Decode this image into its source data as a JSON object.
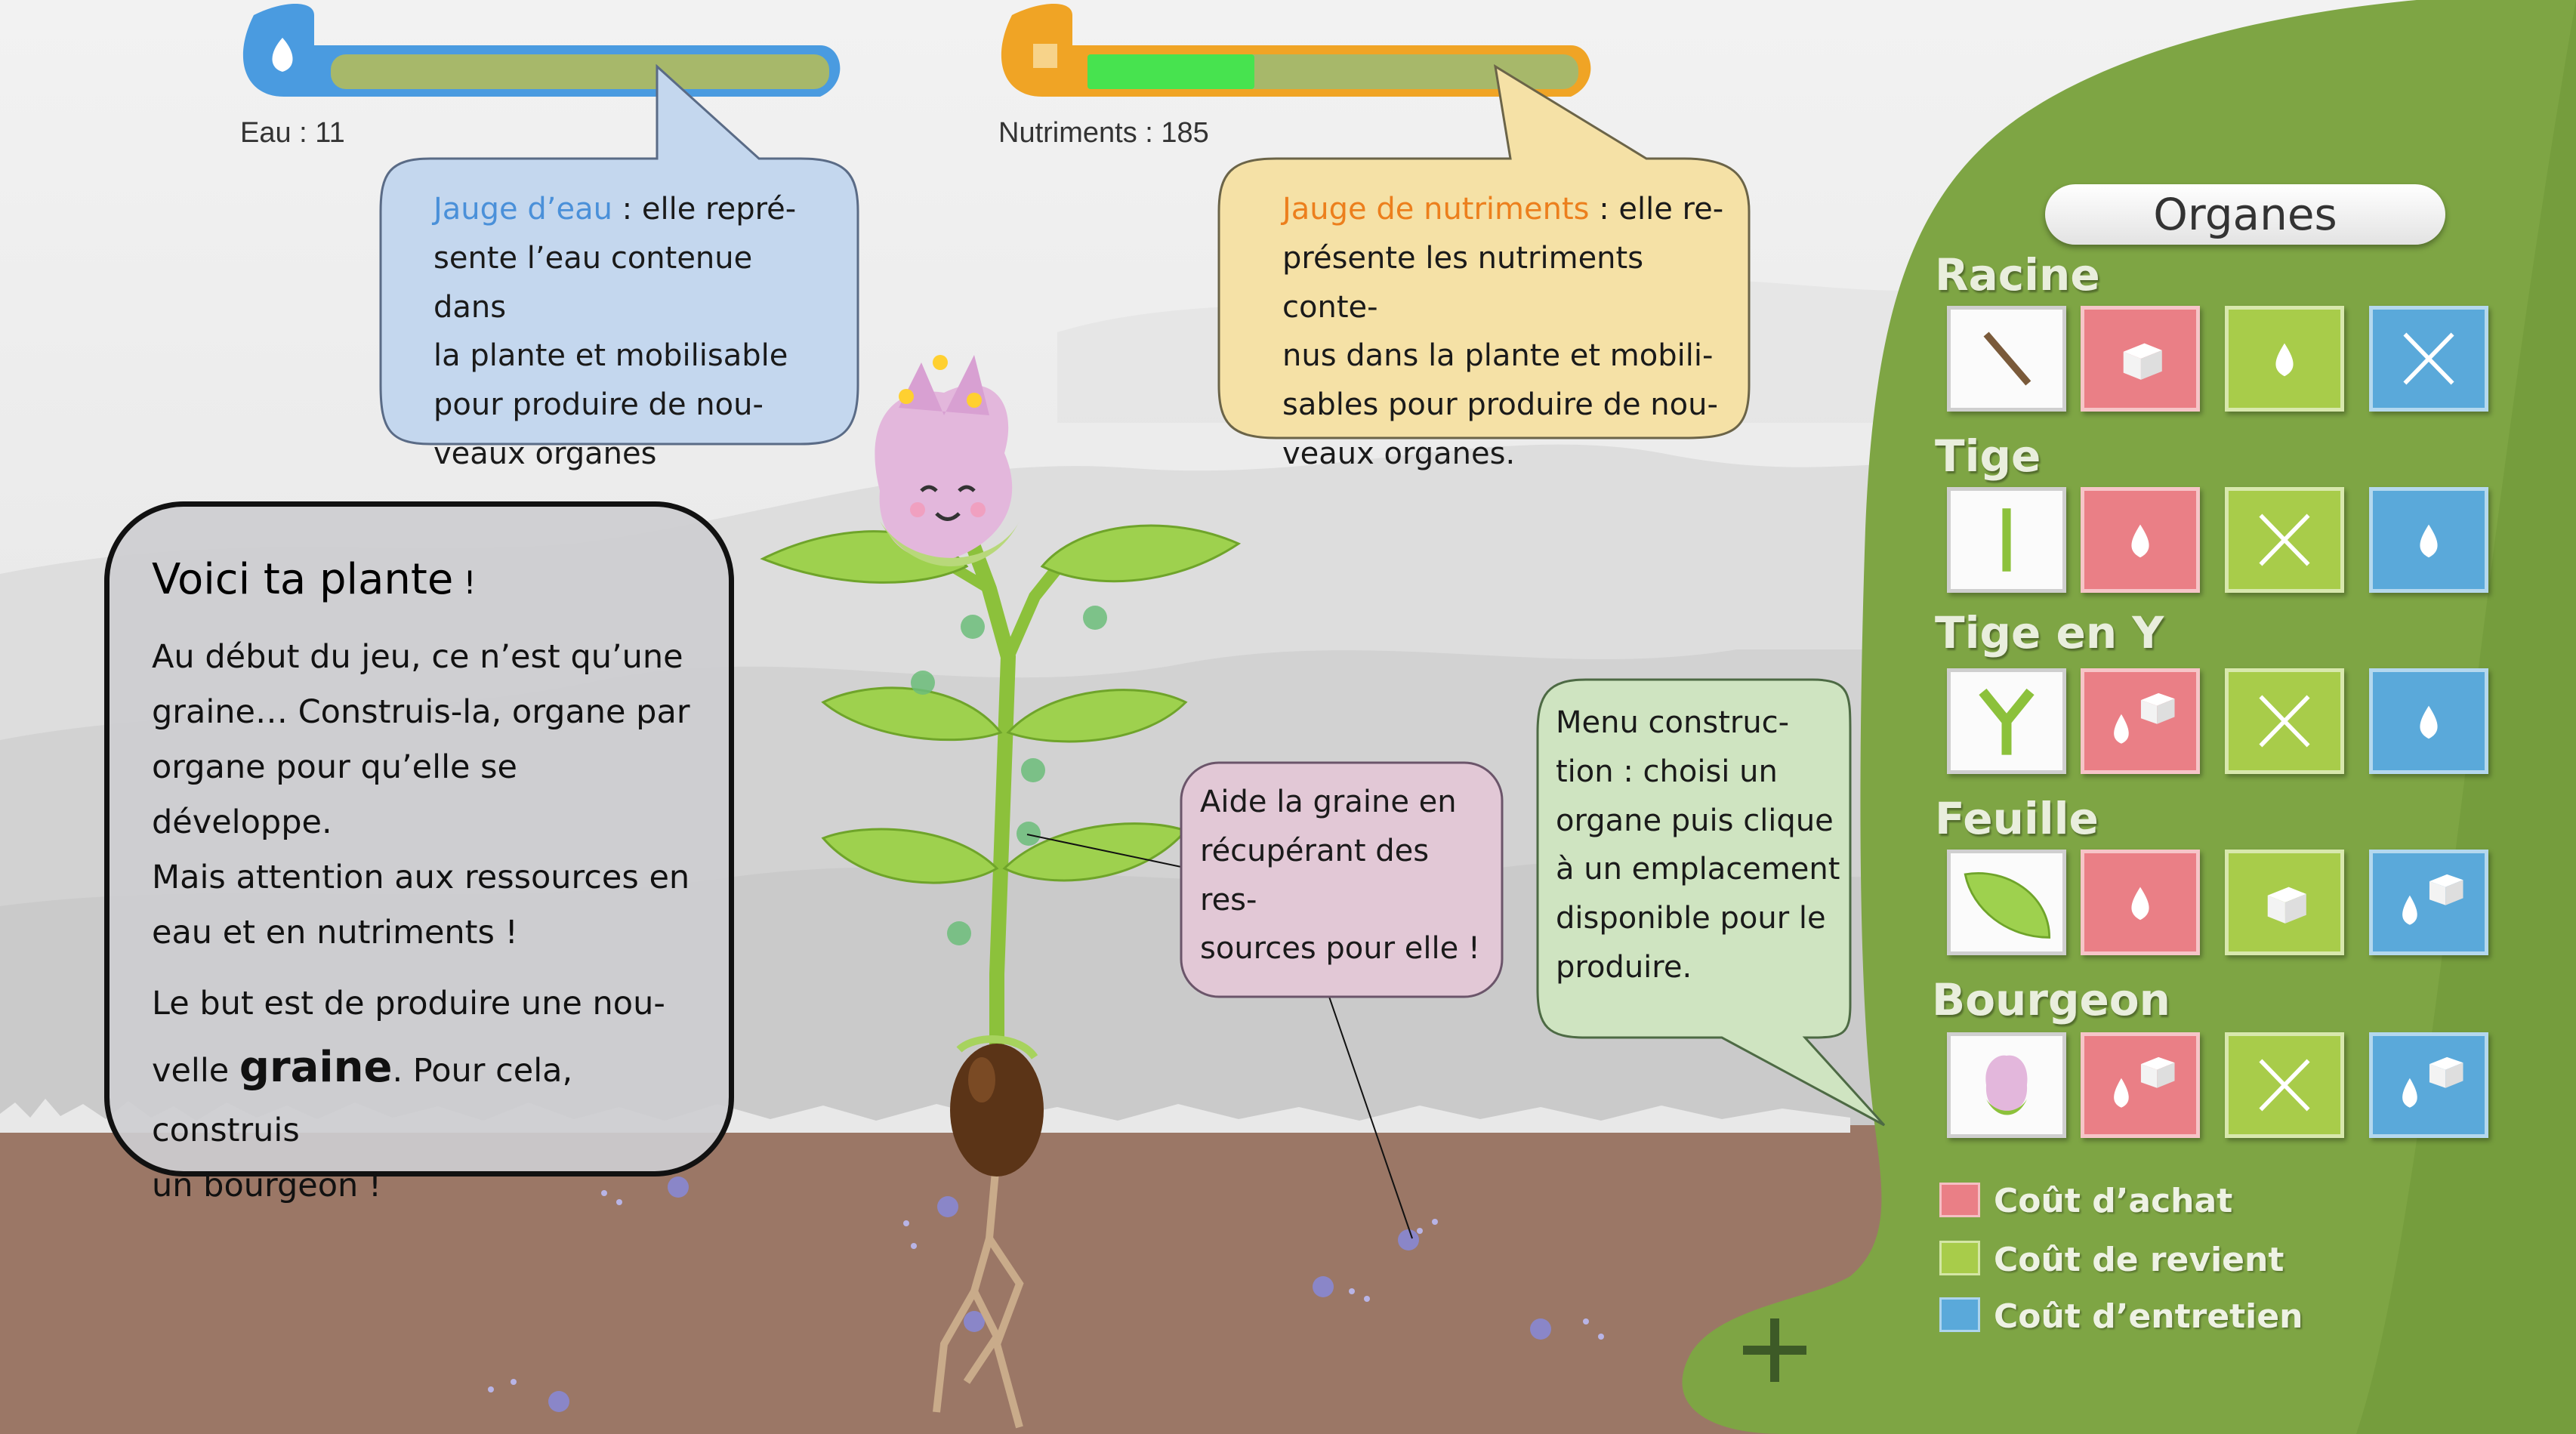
{
  "hud": {
    "water": {
      "label": "Eau : 11",
      "fill_fraction": 0.0,
      "color": "#4a9be0"
    },
    "nutrients": {
      "label": "Nutriments : 185",
      "fill_fraction": 0.34,
      "color": "#f0a425"
    }
  },
  "callouts": {
    "water_gauge": {
      "highlight": "Jauge d’eau",
      "line1_rest": " : elle repré-",
      "line2": "sente l’eau contenue dans",
      "line3": "la plante et mobilisable",
      "line4": "pour produire de nou-",
      "line5": "veaux organes"
    },
    "nutrient_gauge": {
      "highlight": "Jauge de nutriments",
      "line1_rest": " : elle re-",
      "line2": "présente les nutriments conte-",
      "line3": "nus dans la plante et mobili-",
      "line4": "sables pour produire de nou-",
      "line5": "veaux organes."
    },
    "intro": {
      "title": "Voici ta plante",
      "title_suffix": " !",
      "p1_l1": "Au début du jeu, ce n’est qu’une",
      "p1_l2": "graine… Construis-la, organe par",
      "p1_l3": "organe pour qu’elle se développe.",
      "p1_l4": "Mais attention aux ressources en",
      "p1_l5": "eau et en nutriments !",
      "p2_l1": "Le but est de produire une nou-",
      "p2_l2_pre": "velle ",
      "p2_l2_bold": "graine",
      "p2_l2_post": ". Pour cela, construis",
      "p2_l3": "un bourgeon !"
    },
    "seed_help": {
      "line1": "Aide la graine en",
      "line2": "récupérant des res-",
      "line3": "sources pour elle !"
    },
    "build_menu": {
      "line1": "Menu construc-",
      "line2": "tion  : choisi un",
      "line3": "organe puis clique",
      "line4": "à un emplacement",
      "line5": "disponible pour le",
      "line6": "produire."
    }
  },
  "organ_panel": {
    "title": "Organes",
    "rows": [
      {
        "label": "Racine",
        "icon": "root-icon",
        "cost_icons": [
          "cube-icon",
          "drop-icon",
          "none-x-icon"
        ]
      },
      {
        "label": "Tige",
        "icon": "stem-icon",
        "cost_icons": [
          "drop-icon",
          "none-x-icon",
          "drop-icon"
        ]
      },
      {
        "label": "Tige en Y",
        "icon": "y-stem-icon",
        "cost_icons": [
          "drop-cube-icon",
          "none-x-icon",
          "drop-icon"
        ]
      },
      {
        "label": "Feuille",
        "icon": "leaf-icon",
        "cost_icons": [
          "drop-icon",
          "cube-icon",
          "drop-cube-icon"
        ]
      },
      {
        "label": "Bourgeon",
        "icon": "bud-icon",
        "cost_icons": [
          "drop-cube-icon",
          "none-x-icon",
          "drop-cube-icon"
        ]
      }
    ],
    "legend": [
      {
        "label": "Coût d’achat",
        "color": "#ea7f86"
      },
      {
        "label": "Coût de revient",
        "color": "#a8cc4a"
      },
      {
        "label": "Coût d’entretien",
        "color": "#5aa9da"
      }
    ],
    "add_button_icon": "plus-icon"
  },
  "colors": {
    "water_highlight": "#4a90d9",
    "nutrient_highlight": "#ec7f1d",
    "panel_green": "#7ea544",
    "soil": "#9b7766"
  }
}
